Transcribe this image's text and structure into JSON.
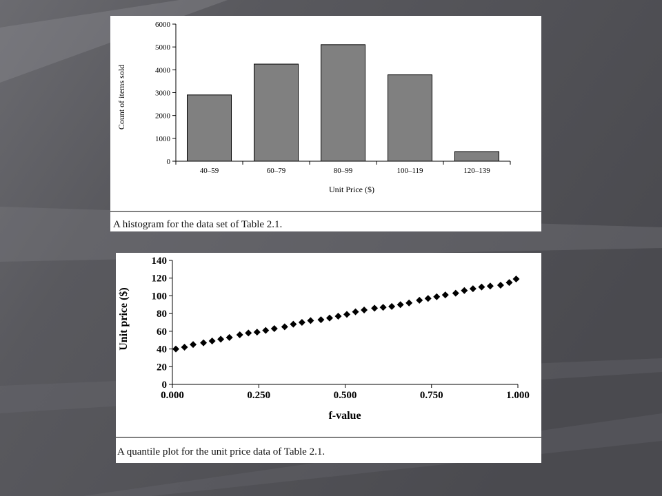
{
  "colors": {
    "background_dark": "#55555a",
    "background_light": "#8e8e94",
    "bar_fill": "#808080",
    "bar_stroke": "#000000",
    "marker": "#000000"
  },
  "chart_data": [
    {
      "type": "bar",
      "categories": [
        "40–59",
        "60–79",
        "80–99",
        "100–119",
        "120–139"
      ],
      "values": [
        2900,
        4250,
        5100,
        3780,
        420
      ],
      "xlabel": "Unit Price ($)",
      "ylabel": "Count of items sold",
      "ylim": [
        0,
        6000
      ],
      "yticks": [
        "0",
        "1000",
        "2000",
        "3000",
        "4000",
        "5000",
        "6000"
      ],
      "caption": "A histogram for the data set of Table 2.1."
    },
    {
      "type": "scatter",
      "xlabel": "f-value",
      "ylabel": "Unit price ($)",
      "xlim": [
        0,
        1
      ],
      "ylim": [
        0,
        140
      ],
      "xticks": [
        "0.000",
        "0.250",
        "0.500",
        "0.750",
        "1.000"
      ],
      "yticks": [
        "0",
        "20",
        "40",
        "60",
        "80",
        "100",
        "120",
        "140"
      ],
      "caption": "A quantile plot for the unit price data of Table 2.1.",
      "x": [
        0.01,
        0.035,
        0.06,
        0.09,
        0.115,
        0.14,
        0.165,
        0.195,
        0.22,
        0.245,
        0.27,
        0.295,
        0.325,
        0.35,
        0.375,
        0.4,
        0.43,
        0.455,
        0.48,
        0.505,
        0.53,
        0.555,
        0.585,
        0.61,
        0.635,
        0.66,
        0.685,
        0.715,
        0.74,
        0.765,
        0.79,
        0.82,
        0.845,
        0.87,
        0.895,
        0.92,
        0.95,
        0.975,
        0.995
      ],
      "y": [
        40,
        42,
        45,
        47,
        49,
        51,
        53,
        56,
        58,
        59,
        61,
        63,
        65,
        68,
        70,
        72,
        73,
        75,
        77,
        79,
        82,
        84,
        86,
        87,
        88,
        90,
        92,
        95,
        97,
        99,
        101,
        103,
        106,
        108,
        110,
        111,
        112,
        115,
        119
      ]
    }
  ]
}
